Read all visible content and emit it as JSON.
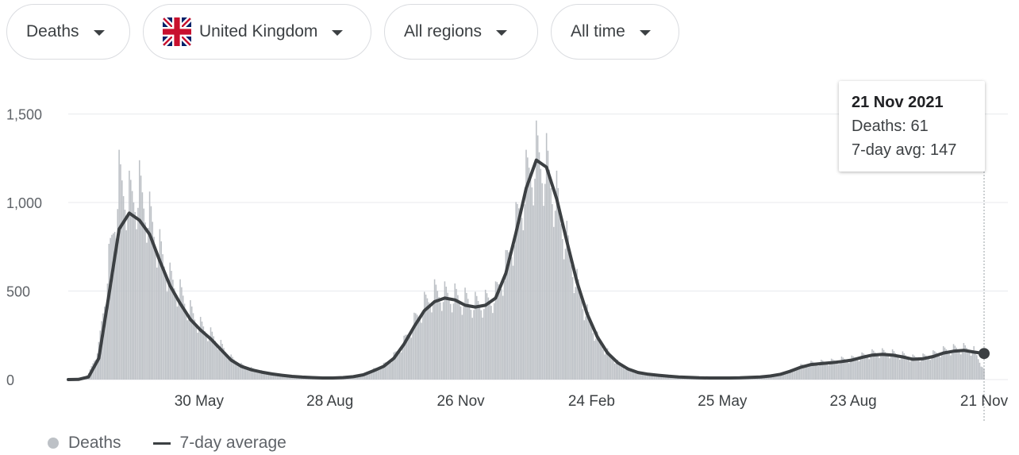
{
  "filters": [
    {
      "label": "Deaths",
      "icon": "chevron-down-icon"
    },
    {
      "label": "United Kingdom",
      "icon": "chevron-down-icon",
      "flag": "uk-flag-icon"
    },
    {
      "label": "All regions",
      "icon": "chevron-down-icon"
    },
    {
      "label": "All time",
      "icon": "chevron-down-icon"
    }
  ],
  "tooltip": {
    "date": "21 Nov 2021",
    "deaths": "Deaths: 61",
    "avg": "7-day avg: 147"
  },
  "legend": {
    "deaths": "Deaths",
    "avg": "7-day average"
  },
  "colors": {
    "bars": "#bdc1c6",
    "line": "#3c4043",
    "grid": "#e8eaed"
  },
  "chart_data": {
    "type": "bar",
    "ylim": [
      0,
      1700
    ],
    "yticks": [
      0,
      500,
      1000,
      1500
    ],
    "ytick_labels": [
      "0",
      "500",
      "1,000",
      "1,500"
    ],
    "xlim": [
      "2020-03-01",
      "2021-11-21"
    ],
    "xticks": [
      {
        "date": "2020-05-30",
        "label": "30 May"
      },
      {
        "date": "2020-08-28",
        "label": "28 Aug"
      },
      {
        "date": "2020-11-26",
        "label": "26 Nov"
      },
      {
        "date": "2021-02-24",
        "label": "24 Feb"
      },
      {
        "date": "2021-05-25",
        "label": "25 May"
      },
      {
        "date": "2021-08-23",
        "label": "23 Aug"
      },
      {
        "date": "2021-11-21",
        "label": "21 Nov"
      }
    ],
    "series": [
      {
        "name": "Deaths",
        "kind": "bar",
        "values_every_7_days": [
          {
            "date": "2020-03-01",
            "value": 0
          },
          {
            "date": "2020-03-08",
            "value": 2
          },
          {
            "date": "2020-03-15",
            "value": 30
          },
          {
            "date": "2020-03-22",
            "value": 180
          },
          {
            "date": "2020-03-29",
            "value": 650
          },
          {
            "date": "2020-04-05",
            "value": 1100
          },
          {
            "date": "2020-04-12",
            "value": 1000
          },
          {
            "date": "2020-04-19",
            "value": 1050
          },
          {
            "date": "2020-04-26",
            "value": 900
          },
          {
            "date": "2020-05-03",
            "value": 720
          },
          {
            "date": "2020-05-10",
            "value": 560
          },
          {
            "date": "2020-05-17",
            "value": 480
          },
          {
            "date": "2020-05-24",
            "value": 380
          },
          {
            "date": "2020-05-31",
            "value": 300
          },
          {
            "date": "2020-06-07",
            "value": 250
          },
          {
            "date": "2020-06-14",
            "value": 190
          },
          {
            "date": "2020-06-21",
            "value": 120
          },
          {
            "date": "2020-06-28",
            "value": 80
          },
          {
            "date": "2020-07-05",
            "value": 60
          },
          {
            "date": "2020-07-12",
            "value": 45
          },
          {
            "date": "2020-07-19",
            "value": 35
          },
          {
            "date": "2020-07-26",
            "value": 25
          },
          {
            "date": "2020-08-02",
            "value": 20
          },
          {
            "date": "2020-08-09",
            "value": 15
          },
          {
            "date": "2020-08-16",
            "value": 12
          },
          {
            "date": "2020-08-23",
            "value": 10
          },
          {
            "date": "2020-08-30",
            "value": 10
          },
          {
            "date": "2020-09-06",
            "value": 12
          },
          {
            "date": "2020-09-13",
            "value": 18
          },
          {
            "date": "2020-09-20",
            "value": 30
          },
          {
            "date": "2020-09-27",
            "value": 55
          },
          {
            "date": "2020-10-04",
            "value": 80
          },
          {
            "date": "2020-10-11",
            "value": 130
          },
          {
            "date": "2020-10-18",
            "value": 210
          },
          {
            "date": "2020-10-25",
            "value": 320
          },
          {
            "date": "2020-11-01",
            "value": 420
          },
          {
            "date": "2020-11-08",
            "value": 480
          },
          {
            "date": "2020-11-15",
            "value": 470
          },
          {
            "date": "2020-11-22",
            "value": 460
          },
          {
            "date": "2020-11-29",
            "value": 440
          },
          {
            "date": "2020-12-06",
            "value": 420
          },
          {
            "date": "2020-12-13",
            "value": 430
          },
          {
            "date": "2020-12-20",
            "value": 470
          },
          {
            "date": "2020-12-27",
            "value": 620
          },
          {
            "date": "2021-01-03",
            "value": 850
          },
          {
            "date": "2021-01-10",
            "value": 1100
          },
          {
            "date": "2021-01-17",
            "value": 1240
          },
          {
            "date": "2021-01-24",
            "value": 1180
          },
          {
            "date": "2021-01-31",
            "value": 1000
          },
          {
            "date": "2021-02-07",
            "value": 760
          },
          {
            "date": "2021-02-14",
            "value": 530
          },
          {
            "date": "2021-02-21",
            "value": 360
          },
          {
            "date": "2021-02-28",
            "value": 230
          },
          {
            "date": "2021-03-07",
            "value": 150
          },
          {
            "date": "2021-03-14",
            "value": 95
          },
          {
            "date": "2021-03-21",
            "value": 60
          },
          {
            "date": "2021-03-28",
            "value": 40
          },
          {
            "date": "2021-04-04",
            "value": 30
          },
          {
            "date": "2021-04-11",
            "value": 25
          },
          {
            "date": "2021-04-18",
            "value": 20
          },
          {
            "date": "2021-04-25",
            "value": 15
          },
          {
            "date": "2021-05-02",
            "value": 12
          },
          {
            "date": "2021-05-09",
            "value": 10
          },
          {
            "date": "2021-05-16",
            "value": 9
          },
          {
            "date": "2021-05-23",
            "value": 9
          },
          {
            "date": "2021-05-30",
            "value": 10
          },
          {
            "date": "2021-06-06",
            "value": 10
          },
          {
            "date": "2021-06-13",
            "value": 12
          },
          {
            "date": "2021-06-20",
            "value": 15
          },
          {
            "date": "2021-06-27",
            "value": 20
          },
          {
            "date": "2021-07-04",
            "value": 30
          },
          {
            "date": "2021-07-11",
            "value": 50
          },
          {
            "date": "2021-07-18",
            "value": 75
          },
          {
            "date": "2021-07-25",
            "value": 90
          },
          {
            "date": "2021-08-01",
            "value": 95
          },
          {
            "date": "2021-08-08",
            "value": 100
          },
          {
            "date": "2021-08-15",
            "value": 110
          },
          {
            "date": "2021-08-22",
            "value": 115
          },
          {
            "date": "2021-08-29",
            "value": 130
          },
          {
            "date": "2021-09-05",
            "value": 145
          },
          {
            "date": "2021-09-12",
            "value": 150
          },
          {
            "date": "2021-09-19",
            "value": 145
          },
          {
            "date": "2021-09-26",
            "value": 135
          },
          {
            "date": "2021-10-03",
            "value": 120
          },
          {
            "date": "2021-10-10",
            "value": 125
          },
          {
            "date": "2021-10-17",
            "value": 140
          },
          {
            "date": "2021-10-24",
            "value": 160
          },
          {
            "date": "2021-10-31",
            "value": 170
          },
          {
            "date": "2021-11-07",
            "value": 175
          },
          {
            "date": "2021-11-14",
            "value": 160
          },
          {
            "date": "2021-11-21",
            "value": 61
          }
        ]
      },
      {
        "name": "7-day average",
        "kind": "line",
        "values_every_7_days": [
          {
            "date": "2020-03-01",
            "value": 0
          },
          {
            "date": "2020-03-08",
            "value": 1
          },
          {
            "date": "2020-03-15",
            "value": 15
          },
          {
            "date": "2020-03-22",
            "value": 120
          },
          {
            "date": "2020-03-29",
            "value": 480
          },
          {
            "date": "2020-04-05",
            "value": 850
          },
          {
            "date": "2020-04-12",
            "value": 940
          },
          {
            "date": "2020-04-19",
            "value": 900
          },
          {
            "date": "2020-04-26",
            "value": 820
          },
          {
            "date": "2020-05-03",
            "value": 670
          },
          {
            "date": "2020-05-10",
            "value": 530
          },
          {
            "date": "2020-05-17",
            "value": 430
          },
          {
            "date": "2020-05-24",
            "value": 340
          },
          {
            "date": "2020-05-31",
            "value": 280
          },
          {
            "date": "2020-06-07",
            "value": 230
          },
          {
            "date": "2020-06-14",
            "value": 170
          },
          {
            "date": "2020-06-21",
            "value": 110
          },
          {
            "date": "2020-06-28",
            "value": 75
          },
          {
            "date": "2020-07-05",
            "value": 55
          },
          {
            "date": "2020-07-12",
            "value": 42
          },
          {
            "date": "2020-07-19",
            "value": 32
          },
          {
            "date": "2020-07-26",
            "value": 24
          },
          {
            "date": "2020-08-02",
            "value": 18
          },
          {
            "date": "2020-08-09",
            "value": 14
          },
          {
            "date": "2020-08-16",
            "value": 11
          },
          {
            "date": "2020-08-23",
            "value": 9
          },
          {
            "date": "2020-08-30",
            "value": 9
          },
          {
            "date": "2020-09-06",
            "value": 11
          },
          {
            "date": "2020-09-13",
            "value": 16
          },
          {
            "date": "2020-09-20",
            "value": 27
          },
          {
            "date": "2020-09-27",
            "value": 50
          },
          {
            "date": "2020-10-04",
            "value": 75
          },
          {
            "date": "2020-10-11",
            "value": 120
          },
          {
            "date": "2020-10-18",
            "value": 200
          },
          {
            "date": "2020-10-25",
            "value": 300
          },
          {
            "date": "2020-11-01",
            "value": 390
          },
          {
            "date": "2020-11-08",
            "value": 440
          },
          {
            "date": "2020-11-15",
            "value": 460
          },
          {
            "date": "2020-11-22",
            "value": 450
          },
          {
            "date": "2020-11-29",
            "value": 420
          },
          {
            "date": "2020-12-06",
            "value": 410
          },
          {
            "date": "2020-12-13",
            "value": 420
          },
          {
            "date": "2020-12-20",
            "value": 460
          },
          {
            "date": "2020-12-27",
            "value": 600
          },
          {
            "date": "2021-01-03",
            "value": 830
          },
          {
            "date": "2021-01-10",
            "value": 1080
          },
          {
            "date": "2021-01-17",
            "value": 1240
          },
          {
            "date": "2021-01-24",
            "value": 1200
          },
          {
            "date": "2021-01-31",
            "value": 1020
          },
          {
            "date": "2021-02-07",
            "value": 780
          },
          {
            "date": "2021-02-14",
            "value": 550
          },
          {
            "date": "2021-02-21",
            "value": 370
          },
          {
            "date": "2021-02-28",
            "value": 240
          },
          {
            "date": "2021-03-07",
            "value": 150
          },
          {
            "date": "2021-03-14",
            "value": 95
          },
          {
            "date": "2021-03-21",
            "value": 60
          },
          {
            "date": "2021-03-28",
            "value": 40
          },
          {
            "date": "2021-04-04",
            "value": 30
          },
          {
            "date": "2021-04-11",
            "value": 24
          },
          {
            "date": "2021-04-18",
            "value": 19
          },
          {
            "date": "2021-04-25",
            "value": 15
          },
          {
            "date": "2021-05-02",
            "value": 12
          },
          {
            "date": "2021-05-09",
            "value": 10
          },
          {
            "date": "2021-05-16",
            "value": 9
          },
          {
            "date": "2021-05-23",
            "value": 9
          },
          {
            "date": "2021-05-30",
            "value": 9
          },
          {
            "date": "2021-06-06",
            "value": 10
          },
          {
            "date": "2021-06-13",
            "value": 12
          },
          {
            "date": "2021-06-20",
            "value": 15
          },
          {
            "date": "2021-06-27",
            "value": 20
          },
          {
            "date": "2021-07-04",
            "value": 30
          },
          {
            "date": "2021-07-11",
            "value": 48
          },
          {
            "date": "2021-07-18",
            "value": 70
          },
          {
            "date": "2021-07-25",
            "value": 85
          },
          {
            "date": "2021-08-01",
            "value": 90
          },
          {
            "date": "2021-08-08",
            "value": 95
          },
          {
            "date": "2021-08-15",
            "value": 102
          },
          {
            "date": "2021-08-22",
            "value": 110
          },
          {
            "date": "2021-08-29",
            "value": 125
          },
          {
            "date": "2021-09-05",
            "value": 138
          },
          {
            "date": "2021-09-12",
            "value": 142
          },
          {
            "date": "2021-09-19",
            "value": 138
          },
          {
            "date": "2021-09-26",
            "value": 128
          },
          {
            "date": "2021-10-03",
            "value": 115
          },
          {
            "date": "2021-10-10",
            "value": 118
          },
          {
            "date": "2021-10-17",
            "value": 130
          },
          {
            "date": "2021-10-24",
            "value": 150
          },
          {
            "date": "2021-10-31",
            "value": 160
          },
          {
            "date": "2021-11-07",
            "value": 165
          },
          {
            "date": "2021-11-14",
            "value": 155
          },
          {
            "date": "2021-11-21",
            "value": 147
          }
        ]
      }
    ],
    "highlight": {
      "date": "2021-11-21",
      "value": 147
    }
  }
}
